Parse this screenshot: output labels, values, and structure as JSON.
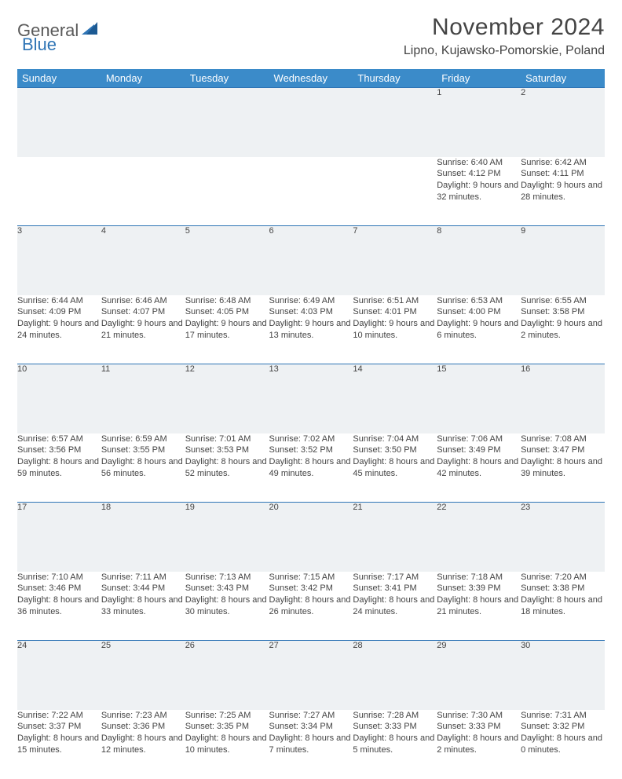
{
  "brand": {
    "part1": "General",
    "part2": "Blue"
  },
  "title": "November 2024",
  "location": "Lipno, Kujawsko-Pomorskie, Poland",
  "colors": {
    "header_bg": "#3b8bc9",
    "accent": "#2e74b5",
    "daynum_bg": "#eef1f3",
    "text": "#444444",
    "page_bg": "#ffffff"
  },
  "weekdays": [
    "Sunday",
    "Monday",
    "Tuesday",
    "Wednesday",
    "Thursday",
    "Friday",
    "Saturday"
  ],
  "weeks": [
    [
      null,
      null,
      null,
      null,
      null,
      {
        "n": "1",
        "sunrise": "6:40 AM",
        "sunset": "4:12 PM",
        "dl": "9 hours and 32 minutes."
      },
      {
        "n": "2",
        "sunrise": "6:42 AM",
        "sunset": "4:11 PM",
        "dl": "9 hours and 28 minutes."
      }
    ],
    [
      {
        "n": "3",
        "sunrise": "6:44 AM",
        "sunset": "4:09 PM",
        "dl": "9 hours and 24 minutes."
      },
      {
        "n": "4",
        "sunrise": "6:46 AM",
        "sunset": "4:07 PM",
        "dl": "9 hours and 21 minutes."
      },
      {
        "n": "5",
        "sunrise": "6:48 AM",
        "sunset": "4:05 PM",
        "dl": "9 hours and 17 minutes."
      },
      {
        "n": "6",
        "sunrise": "6:49 AM",
        "sunset": "4:03 PM",
        "dl": "9 hours and 13 minutes."
      },
      {
        "n": "7",
        "sunrise": "6:51 AM",
        "sunset": "4:01 PM",
        "dl": "9 hours and 10 minutes."
      },
      {
        "n": "8",
        "sunrise": "6:53 AM",
        "sunset": "4:00 PM",
        "dl": "9 hours and 6 minutes."
      },
      {
        "n": "9",
        "sunrise": "6:55 AM",
        "sunset": "3:58 PM",
        "dl": "9 hours and 2 minutes."
      }
    ],
    [
      {
        "n": "10",
        "sunrise": "6:57 AM",
        "sunset": "3:56 PM",
        "dl": "8 hours and 59 minutes."
      },
      {
        "n": "11",
        "sunrise": "6:59 AM",
        "sunset": "3:55 PM",
        "dl": "8 hours and 56 minutes."
      },
      {
        "n": "12",
        "sunrise": "7:01 AM",
        "sunset": "3:53 PM",
        "dl": "8 hours and 52 minutes."
      },
      {
        "n": "13",
        "sunrise": "7:02 AM",
        "sunset": "3:52 PM",
        "dl": "8 hours and 49 minutes."
      },
      {
        "n": "14",
        "sunrise": "7:04 AM",
        "sunset": "3:50 PM",
        "dl": "8 hours and 45 minutes."
      },
      {
        "n": "15",
        "sunrise": "7:06 AM",
        "sunset": "3:49 PM",
        "dl": "8 hours and 42 minutes."
      },
      {
        "n": "16",
        "sunrise": "7:08 AM",
        "sunset": "3:47 PM",
        "dl": "8 hours and 39 minutes."
      }
    ],
    [
      {
        "n": "17",
        "sunrise": "7:10 AM",
        "sunset": "3:46 PM",
        "dl": "8 hours and 36 minutes."
      },
      {
        "n": "18",
        "sunrise": "7:11 AM",
        "sunset": "3:44 PM",
        "dl": "8 hours and 33 minutes."
      },
      {
        "n": "19",
        "sunrise": "7:13 AM",
        "sunset": "3:43 PM",
        "dl": "8 hours and 30 minutes."
      },
      {
        "n": "20",
        "sunrise": "7:15 AM",
        "sunset": "3:42 PM",
        "dl": "8 hours and 26 minutes."
      },
      {
        "n": "21",
        "sunrise": "7:17 AM",
        "sunset": "3:41 PM",
        "dl": "8 hours and 24 minutes."
      },
      {
        "n": "22",
        "sunrise": "7:18 AM",
        "sunset": "3:39 PM",
        "dl": "8 hours and 21 minutes."
      },
      {
        "n": "23",
        "sunrise": "7:20 AM",
        "sunset": "3:38 PM",
        "dl": "8 hours and 18 minutes."
      }
    ],
    [
      {
        "n": "24",
        "sunrise": "7:22 AM",
        "sunset": "3:37 PM",
        "dl": "8 hours and 15 minutes."
      },
      {
        "n": "25",
        "sunrise": "7:23 AM",
        "sunset": "3:36 PM",
        "dl": "8 hours and 12 minutes."
      },
      {
        "n": "26",
        "sunrise": "7:25 AM",
        "sunset": "3:35 PM",
        "dl": "8 hours and 10 minutes."
      },
      {
        "n": "27",
        "sunrise": "7:27 AM",
        "sunset": "3:34 PM",
        "dl": "8 hours and 7 minutes."
      },
      {
        "n": "28",
        "sunrise": "7:28 AM",
        "sunset": "3:33 PM",
        "dl": "8 hours and 5 minutes."
      },
      {
        "n": "29",
        "sunrise": "7:30 AM",
        "sunset": "3:33 PM",
        "dl": "8 hours and 2 minutes."
      },
      {
        "n": "30",
        "sunrise": "7:31 AM",
        "sunset": "3:32 PM",
        "dl": "8 hours and 0 minutes."
      }
    ]
  ],
  "labels": {
    "sunrise": "Sunrise:",
    "sunset": "Sunset:",
    "daylight": "Daylight:"
  }
}
